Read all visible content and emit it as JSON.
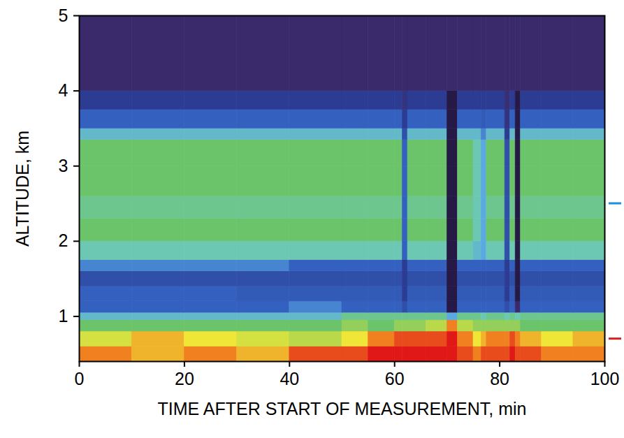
{
  "chart_data": {
    "type": "heatmap",
    "x_label": "TIME AFTER START OF MEASUREMENT, min",
    "y_label": "ALTITUDE, km",
    "xlim": [
      0,
      100
    ],
    "ylim": [
      0.4,
      5
    ],
    "xticks": [
      0,
      20,
      40,
      60,
      80,
      100
    ],
    "yticks": [
      1,
      2,
      3,
      4,
      5
    ],
    "x_edges": [
      0,
      10,
      20,
      30,
      40,
      50,
      55,
      60,
      61.5,
      62.5,
      66,
      70,
      72,
      75,
      76.5,
      77.5,
      81,
      82,
      83,
      84,
      88,
      94,
      100
    ],
    "y_edges": [
      0.4,
      0.6,
      0.8,
      0.95,
      1.05,
      1.2,
      1.4,
      1.6,
      1.75,
      2.0,
      2.3,
      2.6,
      3.0,
      3.35,
      3.5,
      3.75,
      4.0,
      5.0
    ],
    "zlim": [
      0,
      10
    ],
    "cells": [
      [
        9,
        8.5,
        9,
        8.5,
        9.5,
        9.5,
        10,
        10,
        10,
        10,
        10,
        10,
        9.5,
        9,
        9.5,
        9.5,
        9.5,
        10,
        9.5,
        9.5,
        9,
        9
      ],
      [
        7.5,
        8.5,
        8,
        7.5,
        7,
        8,
        9,
        9.5,
        9.5,
        9.5,
        9.5,
        10,
        9,
        8,
        8.5,
        9,
        9,
        9.5,
        9,
        8.5,
        8,
        8.5
      ],
      [
        6,
        6,
        6,
        6,
        6,
        6.5,
        6,
        6.5,
        6.5,
        6.5,
        7,
        9,
        7,
        6.5,
        6.5,
        6.5,
        6.5,
        6.5,
        6.5,
        6,
        6,
        6
      ],
      [
        4.5,
        4.5,
        4.5,
        4.5,
        4.5,
        5.5,
        5.5,
        5.5,
        5.5,
        5.5,
        5.5,
        4,
        5.5,
        5.5,
        5,
        5.5,
        5,
        5.5,
        5,
        5.5,
        5.5,
        5.5
      ],
      [
        3,
        3,
        3,
        3,
        3.5,
        3,
        3,
        3,
        2.5,
        3,
        3,
        0.5,
        3,
        3,
        3,
        3,
        2.5,
        3,
        1,
        3,
        3,
        3
      ],
      [
        3,
        3,
        3,
        2.8,
        2.8,
        2.8,
        2.8,
        2.8,
        2,
        2.8,
        2.8,
        0.5,
        2.8,
        2.8,
        2.8,
        2.8,
        2,
        2.8,
        0.5,
        2.8,
        2.8,
        2.8
      ],
      [
        2.5,
        2.5,
        2.5,
        2.5,
        2.5,
        2.5,
        2.5,
        2.5,
        2,
        2.5,
        2.5,
        0.5,
        2.5,
        2.5,
        2.5,
        2.5,
        2,
        2.5,
        0.5,
        2.5,
        2.5,
        2.5
      ],
      [
        3.5,
        3.5,
        3.5,
        3.5,
        3,
        3,
        3,
        3,
        2,
        3,
        3,
        0.5,
        3,
        3,
        3,
        3,
        2,
        3,
        0.5,
        3,
        3,
        3
      ],
      [
        5,
        5,
        5,
        5,
        5,
        5,
        5,
        5,
        3,
        5,
        5,
        0.5,
        5,
        4.5,
        4,
        5,
        2.5,
        5,
        0.5,
        5,
        5,
        5
      ],
      [
        6,
        6,
        6,
        6,
        6,
        6,
        6,
        6,
        3,
        6,
        6,
        0.5,
        6,
        5,
        4,
        6,
        2.5,
        6,
        0.5,
        6,
        6,
        6
      ],
      [
        5.5,
        5.5,
        5.5,
        5.5,
        5.5,
        5.5,
        5.5,
        5.5,
        3,
        5.5,
        5.5,
        0.5,
        5.5,
        5,
        4,
        5.5,
        2.5,
        5.5,
        0.5,
        5.5,
        5.5,
        5.5
      ],
      [
        6,
        6,
        6,
        6,
        6,
        6,
        6,
        6,
        3,
        6,
        6,
        0.5,
        6,
        5,
        4,
        6,
        2.5,
        6,
        0.5,
        6,
        6,
        6
      ],
      [
        6,
        6,
        6,
        6,
        6,
        6,
        6,
        6,
        3,
        6,
        6,
        0.5,
        6,
        5,
        4,
        6,
        2.5,
        6,
        0.5,
        6,
        6,
        6
      ],
      [
        4.5,
        4.5,
        4.5,
        4.5,
        4.5,
        4.5,
        4.5,
        4.5,
        2.5,
        4.5,
        4.5,
        0.5,
        4.5,
        4.5,
        3.5,
        4.5,
        2,
        4.5,
        0.5,
        4.5,
        4.5,
        4.5
      ],
      [
        3,
        3,
        3,
        3,
        3,
        3,
        3,
        3,
        2,
        3,
        3,
        0.5,
        3,
        3,
        2.8,
        3,
        1.5,
        3,
        0.5,
        3,
        3,
        3
      ],
      [
        2,
        2,
        2,
        2,
        2,
        2,
        2,
        2,
        1.5,
        2,
        2,
        0.5,
        2,
        2,
        2,
        2,
        1.2,
        2,
        0.5,
        2,
        2,
        2
      ],
      [
        1,
        1,
        1,
        1,
        1,
        1,
        1,
        1,
        1,
        1,
        1,
        1,
        1,
        1,
        1,
        1,
        1,
        1,
        1,
        1,
        1,
        1
      ]
    ],
    "y_markers": [
      {
        "value": 2.5,
        "color": "#1f8fd6"
      },
      {
        "value": 0.7,
        "color": "#d42020"
      }
    ]
  }
}
